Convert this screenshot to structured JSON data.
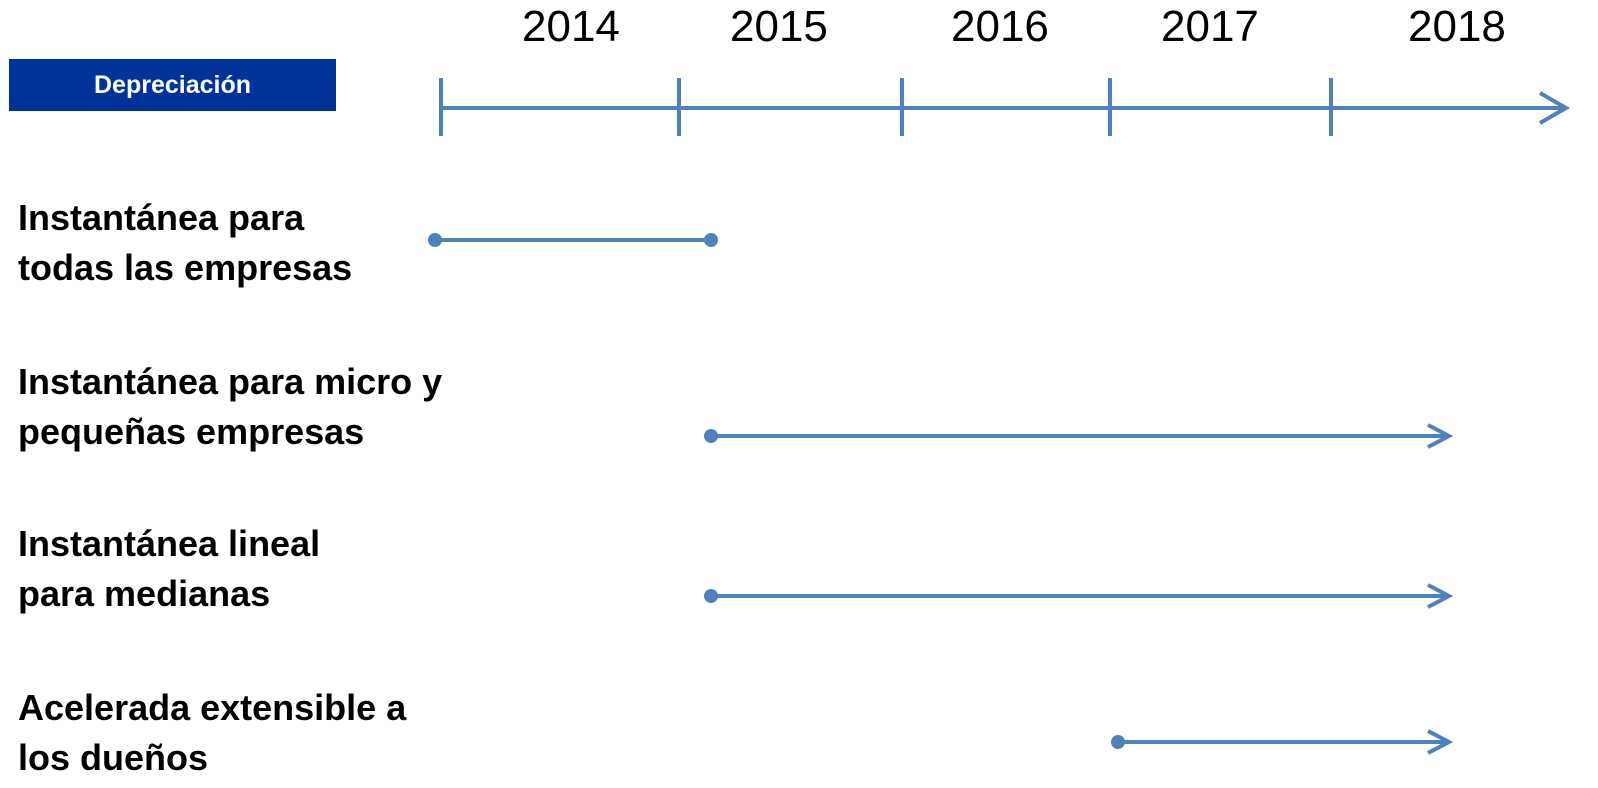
{
  "header_badge": "Depreciación",
  "years": [
    "2014",
    "2015",
    "2016",
    "2017",
    "2018"
  ],
  "accent_color": "#4f81bd",
  "badge_color": "#003399",
  "rows": [
    {
      "label": "Instantánea para todas las empresas",
      "start": "2014",
      "end": "2015",
      "end_style": "dot"
    },
    {
      "label": "Instantánea para micro y pequeñas empresas",
      "start": "2015",
      "end": "2018",
      "end_style": "arrow"
    },
    {
      "label": "Instantánea lineal para medianas",
      "start": "2015",
      "end": "2018",
      "end_style": "arrow"
    },
    {
      "label": "Acelerada extensible a los dueños",
      "start": "2017",
      "end": "2018",
      "end_style": "arrow"
    }
  ]
}
